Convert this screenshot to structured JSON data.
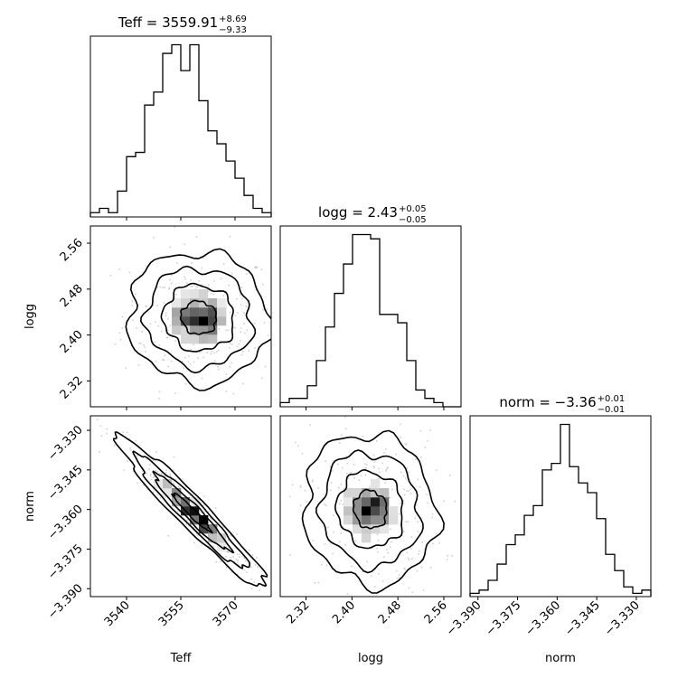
{
  "chart_data": {
    "type": "corner",
    "parameters": [
      "Teff",
      "logg",
      "norm"
    ],
    "titles": [
      {
        "param": "Teff",
        "prefix": "Teff = ",
        "value": "3559.91",
        "plus": "+8.69",
        "minus": "−9.33"
      },
      {
        "param": "logg",
        "prefix": "logg = ",
        "value": "2.43",
        "plus": "+0.05",
        "minus": "−0.05"
      },
      {
        "param": "norm",
        "prefix": "norm = ",
        "value": "−3.36",
        "plus": "+0.01",
        "minus": "−0.01"
      }
    ],
    "axis_labels": {
      "x": [
        "Teff",
        "logg",
        "norm"
      ],
      "y": [
        "logg",
        "norm"
      ]
    },
    "ranges": {
      "Teff": [
        3530,
        3580
      ],
      "logg": [
        2.275,
        2.59
      ],
      "norm": [
        -3.393,
        -3.3245
      ]
    },
    "ticks": {
      "Teff": [
        {
          "v": 3540,
          "t": "3540"
        },
        {
          "v": 3555,
          "t": "3555"
        },
        {
          "v": 3570,
          "t": "3570"
        }
      ],
      "logg": [
        {
          "v": 2.32,
          "t": "2.32"
        },
        {
          "v": 2.4,
          "t": "2.40"
        },
        {
          "v": 2.48,
          "t": "2.48"
        },
        {
          "v": 2.56,
          "t": "2.56"
        }
      ],
      "norm": [
        {
          "v": -3.39,
          "t": "−3.390"
        },
        {
          "v": -3.375,
          "t": "−3.375"
        },
        {
          "v": -3.36,
          "t": "−3.360"
        },
        {
          "v": -3.345,
          "t": "−3.345"
        },
        {
          "v": -3.33,
          "t": "−3.330"
        }
      ]
    },
    "histograms": {
      "Teff": {
        "bins": [
          3530,
          3532.5,
          3535,
          3537.5,
          3540,
          3542.5,
          3545,
          3547.5,
          3550,
          3552.5,
          3555,
          3557.5,
          3560,
          3562.5,
          3565,
          3567.5,
          3570,
          3572.5,
          3575,
          3577.5,
          3580
        ],
        "counts": [
          1,
          2,
          1,
          6,
          14,
          15,
          26,
          29,
          38,
          40,
          34,
          40,
          27,
          20,
          17,
          13,
          9,
          5,
          2,
          1
        ]
      },
      "logg": {
        "bins": [
          2.275,
          2.29075,
          2.3065,
          2.32225,
          2.338,
          2.35375,
          2.3695,
          2.38525,
          2.401,
          2.41675,
          2.4325,
          2.44825,
          2.464,
          2.47975,
          2.4955,
          2.51125,
          2.527,
          2.54275,
          2.5585,
          2.57425,
          2.59
        ],
        "counts": [
          1,
          2,
          2,
          5,
          11,
          19,
          27,
          34,
          41,
          41,
          40,
          22,
          22,
          20,
          11,
          4,
          2,
          1,
          0,
          0
        ]
      },
      "norm": {
        "bins": [
          -3.393,
          -3.389575,
          -3.38615,
          -3.382725,
          -3.3793,
          -3.375875,
          -3.37245,
          -3.369025,
          -3.3656,
          -3.362175,
          -3.35875,
          -3.355325,
          -3.3519,
          -3.348475,
          -3.34505,
          -3.341625,
          -3.3382,
          -3.334775,
          -3.33135,
          -3.327925,
          -3.3245
        ],
        "counts": [
          1,
          2,
          5,
          10,
          16,
          19,
          25,
          28,
          39,
          41,
          53,
          40,
          35,
          32,
          24,
          13,
          8,
          3,
          1,
          2
        ]
      }
    },
    "densities": {
      "logg_vs_Teff": {
        "x": "Teff",
        "y": "logg",
        "center": {
          "x": 3560.0,
          "y": 2.43
        },
        "sigma": {
          "x": 8.5,
          "y": 0.05
        },
        "rho": -0.05,
        "peaks": [
          {
            "x": 3562.0,
            "y": 2.428
          },
          {
            "x": 3557.5,
            "y": 2.436
          }
        ]
      },
      "norm_vs_Teff": {
        "x": "Teff",
        "y": "norm",
        "center": {
          "x": 3558.0,
          "y": -3.361
        },
        "sigma": {
          "x": 9.0,
          "y": 0.0125
        },
        "rho": -0.96,
        "peaks": [
          {
            "x": 3557.0,
            "y": -3.36
          },
          {
            "x": 3562.0,
            "y": -3.366
          }
        ]
      },
      "norm_vs_logg": {
        "x": "logg",
        "y": "norm",
        "center": {
          "x": 2.432,
          "y": -3.36
        },
        "sigma": {
          "x": 0.05,
          "y": 0.0125
        },
        "rho": -0.08,
        "peaks": [
          {
            "x": 2.445,
            "y": -3.36
          },
          {
            "x": 2.42,
            "y": -3.358
          }
        ]
      }
    },
    "contour_levels_sigma": [
      0.5,
      1.0,
      1.5,
      2.0
    ],
    "colors": {
      "line": "#000000",
      "density_max": "#000000",
      "density_min": "#ffffff",
      "points": "#b0b0b0"
    }
  }
}
